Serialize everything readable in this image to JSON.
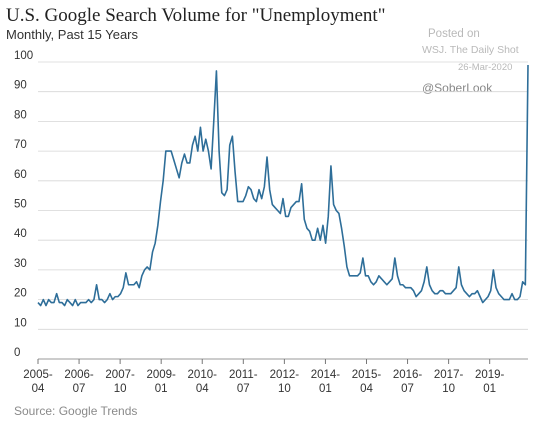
{
  "chart_data": {
    "type": "line",
    "title": "U.S. Google Search Volume for \"Unemployment\"",
    "subtitle": "Monthly, Past 15 Years",
    "source": "Source: Google Trends",
    "watermark": {
      "posted": "Posted on",
      "outlet": "WSJ. The Daily Shot",
      "date": "26-Mar-2020",
      "handle": "@SoberLook"
    },
    "ylim": [
      0,
      100
    ],
    "yticks": [
      "0",
      "10",
      "20",
      "30",
      "40",
      "50",
      "60",
      "70",
      "80",
      "90",
      "100"
    ],
    "xticks": [
      [
        "2005-",
        "04"
      ],
      [
        "2006-",
        "07"
      ],
      [
        "2007-",
        "10"
      ],
      [
        "2009-",
        "01"
      ],
      [
        "2010-",
        "04"
      ],
      [
        "2011-",
        "07"
      ],
      [
        "2012-",
        "10"
      ],
      [
        "2014-",
        "01"
      ],
      [
        "2015-",
        "04"
      ],
      [
        "2016-",
        "07"
      ],
      [
        "2017-",
        "10"
      ],
      [
        "2019-",
        "01"
      ]
    ],
    "grid": "horizontal",
    "line_color": "#2e6e99",
    "x_start": "2005-04",
    "x_end": "2020-03",
    "series": [
      {
        "values": [
          19,
          18,
          20,
          18,
          20,
          19,
          19,
          22,
          19,
          19,
          18,
          20,
          19,
          18,
          20,
          18,
          19,
          19,
          19,
          20,
          19,
          20,
          25,
          20,
          20,
          19,
          20,
          22,
          20,
          21,
          21,
          22,
          24,
          29,
          25,
          25,
          25,
          26,
          24,
          28,
          30,
          31,
          30,
          36,
          39,
          45,
          53,
          60,
          70,
          70,
          70,
          67,
          64,
          61,
          66,
          69,
          66,
          66,
          72,
          75,
          70,
          78,
          70,
          74,
          70,
          64,
          80,
          97,
          70,
          56,
          55,
          57,
          72,
          75,
          63,
          53,
          53,
          53,
          55,
          58,
          57,
          54,
          53,
          57,
          54,
          58,
          68,
          57,
          52,
          51,
          50,
          49,
          54,
          48,
          48,
          51,
          52,
          53,
          53,
          59,
          47,
          44,
          43,
          40,
          40,
          44,
          40,
          45,
          39,
          48,
          65,
          52,
          50,
          49,
          44,
          38,
          31,
          28,
          28,
          28,
          28,
          29,
          34,
          28,
          28,
          26,
          25,
          26,
          28,
          27,
          26,
          25,
          26,
          27,
          34,
          28,
          25,
          25,
          24,
          24,
          24,
          23,
          21,
          22,
          23,
          26,
          31,
          25,
          23,
          22,
          22,
          23,
          23,
          22,
          22,
          22,
          23,
          24,
          31,
          25,
          23,
          22,
          21,
          22,
          22,
          23,
          21,
          19,
          20,
          21,
          23,
          30,
          24,
          22,
          21,
          20,
          20,
          20,
          22,
          20,
          20,
          21,
          26,
          25,
          99
        ]
      }
    ]
  }
}
